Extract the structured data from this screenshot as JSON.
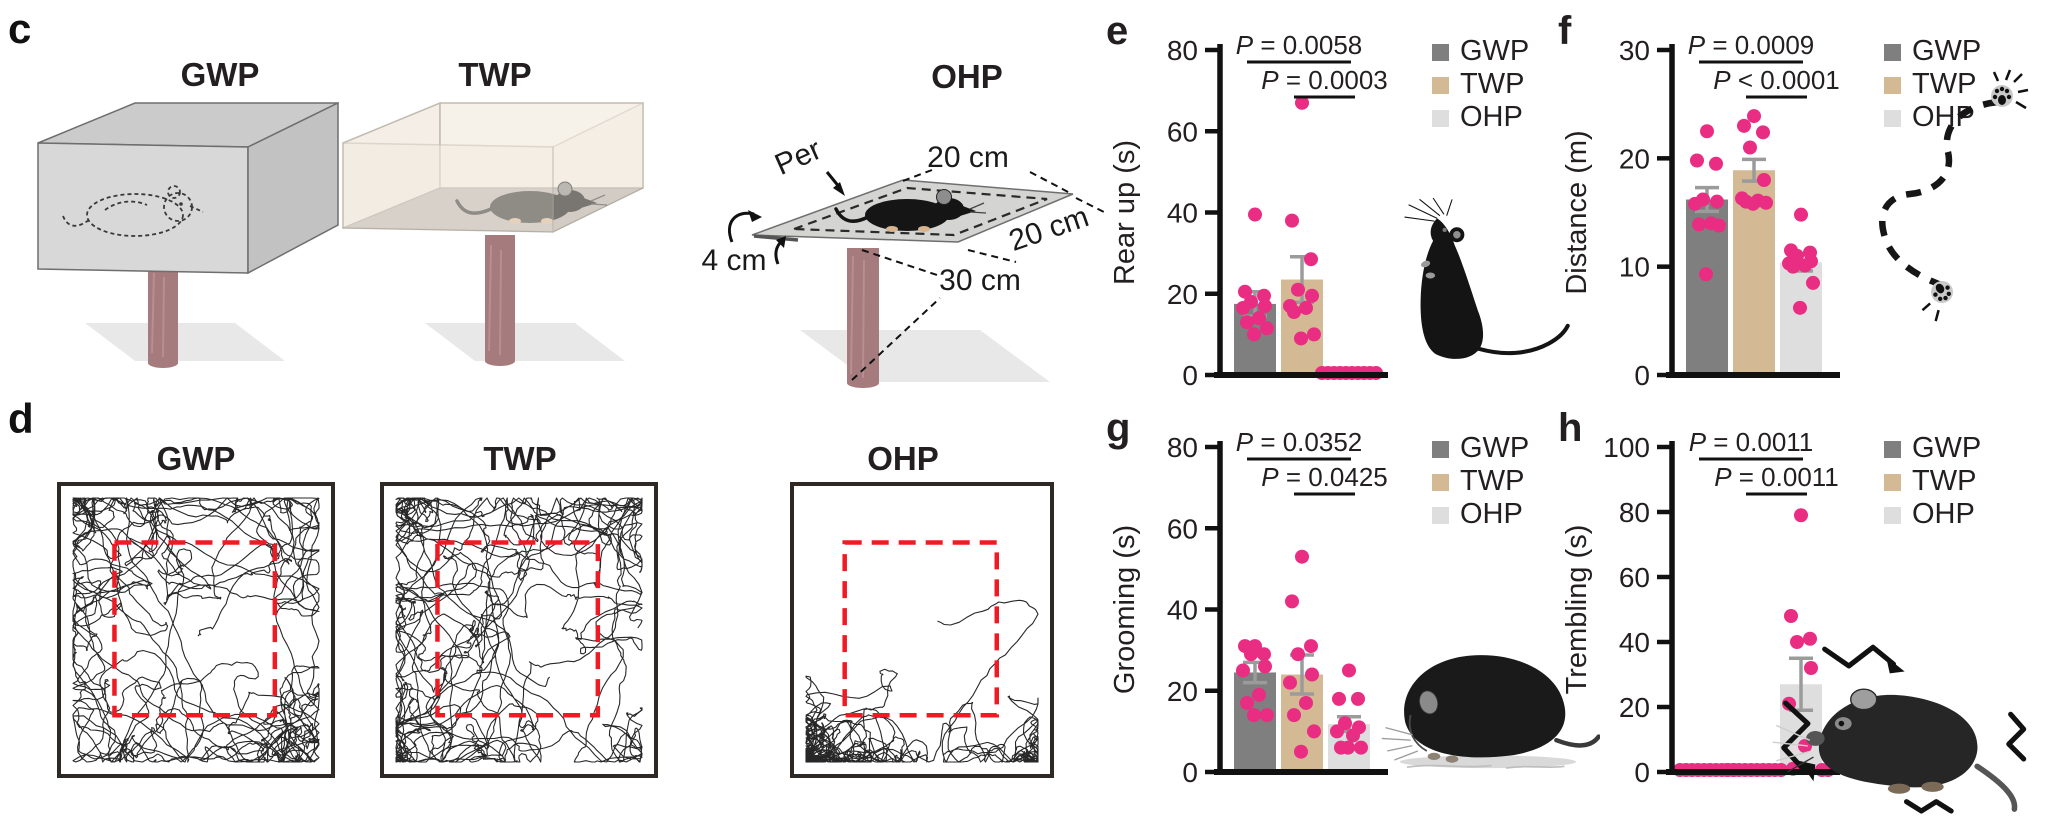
{
  "style": {
    "background": "#ffffff",
    "text_color": "#231f20",
    "dot_color": "#e82d82",
    "error_color": "#9b9b9b",
    "axis_color": "#111111",
    "dash_red": "#ee1b24",
    "trajectory_color": "#1b1b1b",
    "trajectory_border": "#2f2926",
    "pole_color": "#a57b7d",
    "wall_gray": "#d6d6d6",
    "wall_cream": "#f3ede4",
    "floor_gray": "#b7b2ad",
    "platform_gray": "#d4d4d2",
    "shadow_gray": "#e8e8e8"
  },
  "legend": {
    "items": [
      {
        "label": "GWP",
        "color": "#7f7f7f"
      },
      {
        "label": "TWP",
        "color": "#d3b994"
      },
      {
        "label": "OHP",
        "color": "#dedede"
      }
    ]
  },
  "panel_c": {
    "label": "c",
    "apparatus": [
      {
        "title": "GWP"
      },
      {
        "title": "TWP"
      },
      {
        "title": "OHP",
        "per_label": "Per",
        "dim_top": "20 cm",
        "dim_right": "20 cm",
        "dim_edge": "4 cm",
        "dim_pole": "30 cm"
      }
    ]
  },
  "panel_d": {
    "label": "d",
    "plots": [
      {
        "title": "GWP"
      },
      {
        "title": "TWP"
      },
      {
        "title": "OHP"
      }
    ]
  },
  "chart_data": [
    {
      "panel": "e",
      "type": "bar",
      "ylabel": "Rear up (s)",
      "ylim": [
        0,
        80
      ],
      "yticks": [
        0,
        20,
        40,
        60,
        80
      ],
      "categories": [
        "GWP",
        "TWP",
        "OHP"
      ],
      "means": [
        17.5,
        23.5,
        0.3
      ],
      "sems": [
        3.0,
        5.6,
        0
      ],
      "points": [
        [
          39.5,
          20.5,
          19.5,
          18,
          17,
          16.5,
          14,
          13,
          11.5,
          10
        ],
        [
          67,
          38,
          28.5,
          21,
          19.5,
          17,
          16.5,
          15.5,
          10,
          9
        ],
        [
          0,
          0,
          0,
          0,
          0,
          0,
          0,
          0,
          0,
          0
        ]
      ],
      "sig": [
        {
          "label": "P = 0.0058",
          "from": "GWP",
          "to": "OHP"
        },
        {
          "label": "P = 0.0003",
          "from": "TWP",
          "to": "OHP"
        }
      ],
      "illustration": "rearing-mouse"
    },
    {
      "panel": "f",
      "type": "bar",
      "ylabel": "Distance (m)",
      "ylim": [
        0,
        30
      ],
      "yticks": [
        0,
        10,
        20,
        30
      ],
      "categories": [
        "GWP",
        "TWP",
        "OHP"
      ],
      "means": [
        16.2,
        18.9,
        10.4
      ],
      "sems": [
        1.1,
        1.0,
        0.8
      ],
      "points": [
        [
          22.5,
          19.8,
          19.5,
          16.2,
          16.0,
          15.8,
          14.0,
          13.9,
          13.8,
          9.3
        ],
        [
          23.9,
          23.0,
          22.4,
          21.0,
          18.0,
          16.3,
          16.1,
          16.0,
          15.9,
          15.8
        ],
        [
          14.8,
          11.5,
          11.3,
          11.0,
          10.5,
          10.3,
          10.1,
          10.0,
          8.5,
          6.2
        ]
      ],
      "sig": [
        {
          "label": "P = 0.0009",
          "from": "GWP",
          "to": "OHP"
        },
        {
          "label": "P < 0.0001",
          "from": "TWP",
          "to": "OHP"
        }
      ],
      "illustration": "distance-trail"
    },
    {
      "panel": "g",
      "type": "bar",
      "ylabel": "Grooming (s)",
      "ylim": [
        0,
        80
      ],
      "yticks": [
        0,
        20,
        40,
        60,
        80
      ],
      "categories": [
        "GWP",
        "TWP",
        "OHP"
      ],
      "means": [
        24.5,
        24.0,
        11.8
      ],
      "sems": [
        2.5,
        4.8,
        1.8
      ],
      "points": [
        [
          31,
          31,
          29,
          29,
          26,
          25,
          19,
          17,
          14,
          14
        ],
        [
          53,
          42,
          31,
          29,
          24,
          22,
          17,
          14,
          10,
          5
        ],
        [
          25,
          18,
          18,
          12,
          11,
          10,
          9,
          6,
          6,
          6
        ]
      ],
      "sig": [
        {
          "label": "P = 0.0352",
          "from": "GWP",
          "to": "OHP"
        },
        {
          "label": "P = 0.0425",
          "from": "TWP",
          "to": "OHP"
        }
      ],
      "illustration": "grooming-mouse"
    },
    {
      "panel": "h",
      "type": "bar",
      "ylabel": "Trembling (s)",
      "ylim": [
        0,
        100
      ],
      "yticks": [
        0,
        20,
        40,
        60,
        80,
        100
      ],
      "categories": [
        "GWP",
        "TWP",
        "OHP"
      ],
      "means": [
        0,
        0,
        27.0
      ],
      "sems": [
        0,
        0,
        8.0
      ],
      "points": [
        [
          0,
          0,
          0,
          0,
          0,
          0,
          0,
          0,
          0,
          0
        ],
        [
          0,
          0,
          0,
          0,
          0,
          0,
          0,
          0,
          0,
          0
        ],
        [
          79,
          48,
          41,
          40,
          32,
          21,
          8,
          1,
          0,
          0
        ]
      ],
      "sig": [
        {
          "label": "P = 0.0011",
          "from": "GWP",
          "to": "OHP"
        },
        {
          "label": "P = 0.0011",
          "from": "TWP",
          "to": "OHP"
        }
      ],
      "illustration": "trembling-mouse"
    }
  ]
}
